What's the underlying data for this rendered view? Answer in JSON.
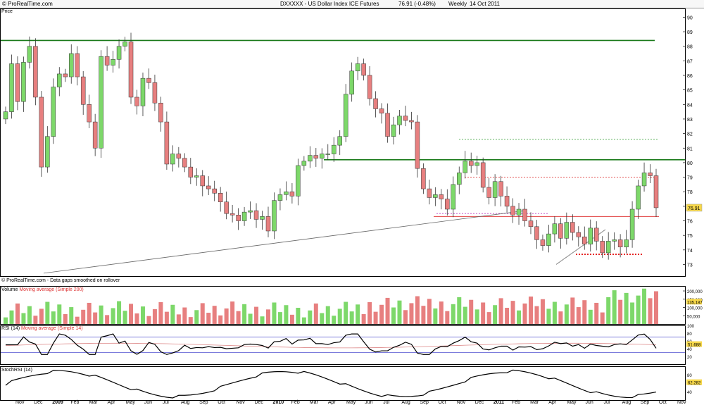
{
  "header": {
    "site": "© ProRealTime.com",
    "title": "DXXXXX - US Dollar Index ICE Futures",
    "last": "76.91 (-0.48%)",
    "period": "Weekly",
    "date": "14 Oct 2011"
  },
  "panels": {
    "price_label": "Price",
    "footnote": "© ProRealTime.com - Data gaps smoothed on rollover",
    "volume_label": "Volume",
    "volume_ma_label": "Moving average (Simple 200)",
    "rsi_label": "RSI (14)",
    "rsi_ma_label": "Moving average (Simple 14)",
    "osc_label": "StochRSI (14)"
  },
  "colors": {
    "up": "#7dd86a",
    "down": "#e77f7f",
    "green_line": "#1a7a1a",
    "red_dotted": "#e00000"
  },
  "chart_data": [
    {
      "type": "candlestick",
      "title": "Price",
      "ylim": [
        72.2,
        90.6
      ],
      "price_ticks": [
        "73",
        "74",
        "75",
        "76",
        "77",
        "78",
        "79",
        "80",
        "81",
        "82",
        "83",
        "84",
        "85",
        "86",
        "87",
        "88",
        "89",
        "90"
      ],
      "current_price_label": "76.91",
      "x_labels": [
        "Nov",
        "Dec",
        "2009",
        "Feb",
        "Mar",
        "Apr",
        "May",
        "Jun",
        "Jul",
        "Aug",
        "Sep",
        "Oct",
        "Nov",
        "Dec",
        "2010",
        "Feb",
        "Mar",
        "Apr",
        "May",
        "Jun",
        "Jul",
        "Aug",
        "Sep",
        "Oct",
        "Nov",
        "Dec",
        "2011",
        "Feb",
        "Mar",
        "Apr",
        "May",
        "Jun",
        "Jul",
        "Aug",
        "Sep",
        "Oct",
        "Nov"
      ],
      "weekly_closes": [
        83.5,
        86.8,
        84.2,
        86.9,
        88.0,
        84.5,
        79.7,
        81.8,
        85.2,
        86.1,
        85.9,
        87.5,
        85.9,
        84.0,
        82.8,
        81.0,
        87.3,
        86.7,
        87.1,
        88.0,
        88.3,
        84.5,
        83.9,
        85.8,
        85.5,
        84.1,
        82.8,
        79.9,
        80.6,
        80.3,
        79.7,
        79.0,
        79.1,
        78.4,
        78.2,
        77.9,
        77.3,
        76.5,
        76.4,
        76.0,
        76.6,
        76.7,
        76.1,
        76.3,
        75.3,
        77.4,
        77.8,
        78.0,
        77.7,
        79.8,
        80.1,
        80.5,
        80.3,
        80.6,
        80.6,
        81.2,
        81.8,
        84.7,
        86.3,
        86.8,
        86.0,
        84.4,
        83.7,
        83.4,
        81.8,
        82.6,
        83.2,
        82.9,
        82.8,
        79.6,
        78.2,
        77.6,
        77.8,
        77.5,
        76.8,
        78.5,
        79.3,
        80.1,
        79.8,
        80.0,
        78.3,
        77.6,
        78.7,
        77.7,
        77.0,
        76.4,
        76.8,
        76.0,
        75.6,
        74.7,
        74.3,
        75.1,
        75.8,
        74.8,
        75.9,
        75.2,
        74.9,
        74.4,
        75.5,
        74.6,
        73.8,
        74.6,
        74.7,
        74.2,
        74.7,
        76.8,
        78.4,
        79.3,
        79.1,
        76.9
      ],
      "levels": [
        {
          "y": 88.4
        },
        {
          "y": 80.2
        },
        {
          "y": 81.6
        },
        {
          "y": 79.0
        },
        {
          "y": 76.3
        },
        {
          "y": 73.7
        }
      ]
    },
    {
      "type": "bar",
      "title": "Volume",
      "ylim": [
        0,
        230000
      ],
      "ticks": [
        "50,000",
        "100,000",
        "150,000",
        "200,000"
      ],
      "current_value_label": "135,187"
    },
    {
      "type": "line",
      "title": "RSI (14)",
      "ylim": [
        0,
        100
      ],
      "ticks": [
        "20",
        "40",
        "60",
        "80",
        "100"
      ],
      "current_value_label": "51.688",
      "bands": [
        30,
        70
      ]
    },
    {
      "type": "line",
      "title": "StochRSI (14)",
      "ylim": [
        20,
        100
      ],
      "ticks": [
        "40",
        "80"
      ],
      "current_value_label": "62.282"
    }
  ]
}
